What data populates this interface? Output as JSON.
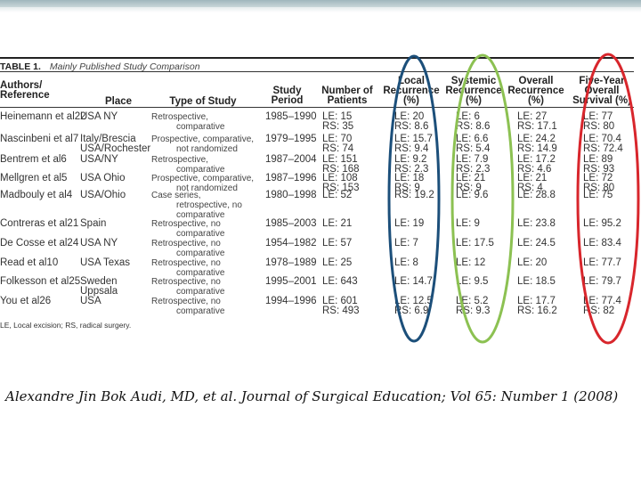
{
  "table": {
    "label": "TABLE 1.",
    "title": "Mainly Published Study Comparison",
    "headers": {
      "authors": [
        "Authors/",
        "Reference"
      ],
      "place": "Place",
      "type": "Type of Study",
      "period": [
        "Study",
        "Period"
      ],
      "patients": [
        "Number of",
        "Patients"
      ],
      "local": [
        "Local",
        "Recurrence",
        "(%)"
      ],
      "systemic": [
        "Systemic",
        "Recurrence",
        "(%)"
      ],
      "overall": [
        "Overall",
        "Recurrence",
        "(%)"
      ],
      "survival": [
        "Five-Year",
        "Overall",
        "Survival (%)"
      ]
    },
    "rows": [
      {
        "author": "Heinemann et al22",
        "place": [
          "USA NY"
        ],
        "type": [
          "Retrospective,",
          "comparative"
        ],
        "period": "1985–1990",
        "patients": [
          "LE: 15",
          "RS: 35"
        ],
        "local": [
          "LE: 20",
          "RS: 8.6"
        ],
        "systemic": [
          "LE: 6",
          "RS: 8.6"
        ],
        "overall": [
          "LE: 27",
          "RS: 17.1"
        ],
        "survival": [
          "LE: 77",
          "RS: 80"
        ]
      },
      {
        "author": "Nascinbeni et al7",
        "place": [
          "Italy/Brescia",
          "USA/Rochester"
        ],
        "type": [
          "Prospective, comparative,",
          "not randomized"
        ],
        "period": "1979–1995",
        "patients": [
          "LE: 70",
          "RS: 74"
        ],
        "local": [
          "LE: 15.7",
          "RS: 9.4"
        ],
        "systemic": [
          "LE: 6.6",
          "RS: 5.4"
        ],
        "overall": [
          "LE: 24.2",
          "RS: 14.9"
        ],
        "survival": [
          "LE: 70.4",
          "RS: 72.4"
        ]
      },
      {
        "author": "Bentrem et al6",
        "place": [
          "USA/NY"
        ],
        "type": [
          "Retrospective,",
          "comparative"
        ],
        "period": "1987–2004",
        "patients": [
          "LE: 151",
          "RS: 168"
        ],
        "local": [
          "LE: 9.2",
          "RS: 2.3"
        ],
        "systemic": [
          "LE: 7.9",
          "RS: 2.3"
        ],
        "overall": [
          "LE: 17.2",
          "RS: 4.6"
        ],
        "survival": [
          "LE: 89",
          "RS: 93"
        ]
      },
      {
        "author": "Mellgren et al5",
        "place": [
          "USA Ohio"
        ],
        "type": [
          "Prospective, comparative,",
          "not randomized"
        ],
        "period": "1987–1996",
        "patients": [
          "LE: 108",
          "RS: 153"
        ],
        "local": [
          "LE: 18",
          "RS: 9"
        ],
        "systemic": [
          "LE: 21",
          "RS: 9"
        ],
        "overall": [
          "LE: 21",
          "RS: 4"
        ],
        "survival": [
          "LE: 72",
          "RS: 80"
        ]
      },
      {
        "author": "Madbouly et al4",
        "place": [
          "USA/Ohio"
        ],
        "type": [
          "Case series,",
          "retrospective, no",
          "comparative"
        ],
        "period": "1980–1998",
        "patients": [
          "LE: 52"
        ],
        "local": [
          "RS: 19.2"
        ],
        "systemic": [
          "LE: 9.6"
        ],
        "overall": [
          "LE: 28.8"
        ],
        "survival": [
          "LE: 75"
        ]
      },
      {
        "author": "Contreras et al21",
        "place": [
          "Spain"
        ],
        "type": [
          "Retrospective, no",
          "comparative"
        ],
        "period": "1985–2003",
        "patients": [
          "LE: 21"
        ],
        "local": [
          "LE: 19"
        ],
        "systemic": [
          "LE: 9"
        ],
        "overall": [
          "LE: 23.8"
        ],
        "survival": [
          "LE: 95.2"
        ]
      },
      {
        "author": "De Cosse et al24",
        "place": [
          "USA NY"
        ],
        "type": [
          "Retrospective, no",
          "comparative"
        ],
        "period": "1954–1982",
        "patients": [
          "LE: 57"
        ],
        "local": [
          "LE: 7"
        ],
        "systemic": [
          "LE: 17.5"
        ],
        "overall": [
          "LE: 24.5"
        ],
        "survival": [
          "LE: 83.4"
        ]
      },
      {
        "author": "Read et al10",
        "place": [
          "USA Texas"
        ],
        "type": [
          "Retrospective, no",
          "comparative"
        ],
        "period": "1978–1989",
        "patients": [
          "LE: 25"
        ],
        "local": [
          "LE: 8"
        ],
        "systemic": [
          "LE: 12"
        ],
        "overall": [
          "LE: 20"
        ],
        "survival": [
          "LE: 77.7"
        ]
      },
      {
        "author": "Folkesson et al25",
        "place": [
          "Sweden",
          "Uppsala"
        ],
        "type": [
          "Retrospective, no",
          "comparative"
        ],
        "period": "1995–2001",
        "patients": [
          "LE: 643"
        ],
        "local": [
          "LE: 14.7"
        ],
        "systemic": [
          "LE: 9.5"
        ],
        "overall": [
          "LE: 18.5"
        ],
        "survival": [
          "LE: 79.7"
        ]
      },
      {
        "author": "You et al26",
        "place": [
          "USA"
        ],
        "type": [
          "Retrospective, no",
          "comparative"
        ],
        "period": "1994–1996",
        "patients": [
          "LE: 601",
          "RS: 493"
        ],
        "local": [
          "LE: 12.5",
          "RS: 6.9"
        ],
        "systemic": [
          "LE: 5.2",
          "RS: 9.3"
        ],
        "overall": [
          "LE: 17.7",
          "RS: 16.2"
        ],
        "survival": [
          "LE: 77.4",
          "RS: 82"
        ]
      }
    ],
    "footnote": "LE, Local excision; RS, radical surgery."
  },
  "citation": "Alexandre Jin Bok Audi, MD, et al. Journal of Surgical Education; Vol 65: Number 1 (2008)",
  "colors": {
    "local_oval": "#1c4f7a",
    "systemic_oval": "#8cc152",
    "survival_oval": "#d8262c"
  }
}
